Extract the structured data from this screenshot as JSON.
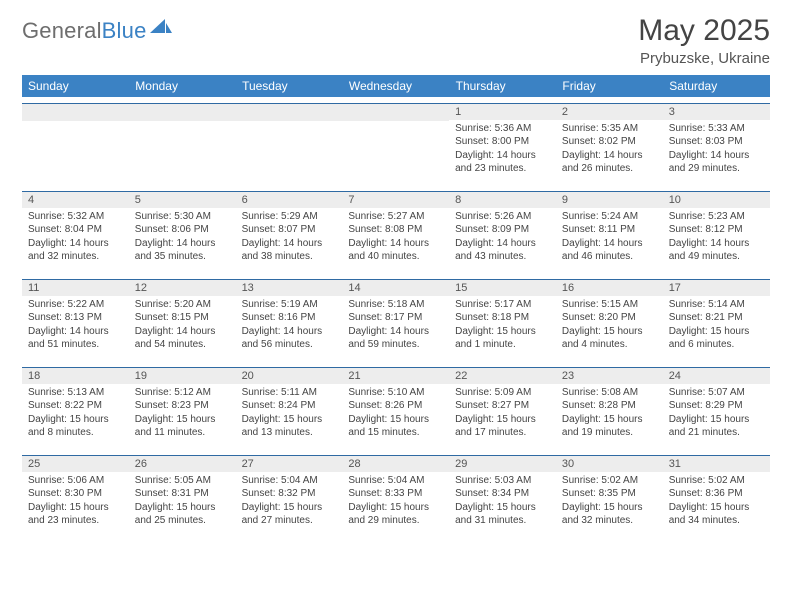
{
  "brand": {
    "part1": "General",
    "part2": "Blue"
  },
  "title": "May 2025",
  "location": "Prybuzske, Ukraine",
  "columns": [
    "Sunday",
    "Monday",
    "Tuesday",
    "Wednesday",
    "Thursday",
    "Friday",
    "Saturday"
  ],
  "colors": {
    "header_bg": "#3b82c4",
    "row_divider": "#2f6aa3",
    "daynum_bg": "#ededed",
    "text": "#444444"
  },
  "weeks": [
    [
      null,
      null,
      null,
      null,
      {
        "n": "1",
        "sr": "5:36 AM",
        "ss": "8:00 PM",
        "dl": "14 hours and 23 minutes."
      },
      {
        "n": "2",
        "sr": "5:35 AM",
        "ss": "8:02 PM",
        "dl": "14 hours and 26 minutes."
      },
      {
        "n": "3",
        "sr": "5:33 AM",
        "ss": "8:03 PM",
        "dl": "14 hours and 29 minutes."
      }
    ],
    [
      {
        "n": "4",
        "sr": "5:32 AM",
        "ss": "8:04 PM",
        "dl": "14 hours and 32 minutes."
      },
      {
        "n": "5",
        "sr": "5:30 AM",
        "ss": "8:06 PM",
        "dl": "14 hours and 35 minutes."
      },
      {
        "n": "6",
        "sr": "5:29 AM",
        "ss": "8:07 PM",
        "dl": "14 hours and 38 minutes."
      },
      {
        "n": "7",
        "sr": "5:27 AM",
        "ss": "8:08 PM",
        "dl": "14 hours and 40 minutes."
      },
      {
        "n": "8",
        "sr": "5:26 AM",
        "ss": "8:09 PM",
        "dl": "14 hours and 43 minutes."
      },
      {
        "n": "9",
        "sr": "5:24 AM",
        "ss": "8:11 PM",
        "dl": "14 hours and 46 minutes."
      },
      {
        "n": "10",
        "sr": "5:23 AM",
        "ss": "8:12 PM",
        "dl": "14 hours and 49 minutes."
      }
    ],
    [
      {
        "n": "11",
        "sr": "5:22 AM",
        "ss": "8:13 PM",
        "dl": "14 hours and 51 minutes."
      },
      {
        "n": "12",
        "sr": "5:20 AM",
        "ss": "8:15 PM",
        "dl": "14 hours and 54 minutes."
      },
      {
        "n": "13",
        "sr": "5:19 AM",
        "ss": "8:16 PM",
        "dl": "14 hours and 56 minutes."
      },
      {
        "n": "14",
        "sr": "5:18 AM",
        "ss": "8:17 PM",
        "dl": "14 hours and 59 minutes."
      },
      {
        "n": "15",
        "sr": "5:17 AM",
        "ss": "8:18 PM",
        "dl": "15 hours and 1 minute."
      },
      {
        "n": "16",
        "sr": "5:15 AM",
        "ss": "8:20 PM",
        "dl": "15 hours and 4 minutes."
      },
      {
        "n": "17",
        "sr": "5:14 AM",
        "ss": "8:21 PM",
        "dl": "15 hours and 6 minutes."
      }
    ],
    [
      {
        "n": "18",
        "sr": "5:13 AM",
        "ss": "8:22 PM",
        "dl": "15 hours and 8 minutes."
      },
      {
        "n": "19",
        "sr": "5:12 AM",
        "ss": "8:23 PM",
        "dl": "15 hours and 11 minutes."
      },
      {
        "n": "20",
        "sr": "5:11 AM",
        "ss": "8:24 PM",
        "dl": "15 hours and 13 minutes."
      },
      {
        "n": "21",
        "sr": "5:10 AM",
        "ss": "8:26 PM",
        "dl": "15 hours and 15 minutes."
      },
      {
        "n": "22",
        "sr": "5:09 AM",
        "ss": "8:27 PM",
        "dl": "15 hours and 17 minutes."
      },
      {
        "n": "23",
        "sr": "5:08 AM",
        "ss": "8:28 PM",
        "dl": "15 hours and 19 minutes."
      },
      {
        "n": "24",
        "sr": "5:07 AM",
        "ss": "8:29 PM",
        "dl": "15 hours and 21 minutes."
      }
    ],
    [
      {
        "n": "25",
        "sr": "5:06 AM",
        "ss": "8:30 PM",
        "dl": "15 hours and 23 minutes."
      },
      {
        "n": "26",
        "sr": "5:05 AM",
        "ss": "8:31 PM",
        "dl": "15 hours and 25 minutes."
      },
      {
        "n": "27",
        "sr": "5:04 AM",
        "ss": "8:32 PM",
        "dl": "15 hours and 27 minutes."
      },
      {
        "n": "28",
        "sr": "5:04 AM",
        "ss": "8:33 PM",
        "dl": "15 hours and 29 minutes."
      },
      {
        "n": "29",
        "sr": "5:03 AM",
        "ss": "8:34 PM",
        "dl": "15 hours and 31 minutes."
      },
      {
        "n": "30",
        "sr": "5:02 AM",
        "ss": "8:35 PM",
        "dl": "15 hours and 32 minutes."
      },
      {
        "n": "31",
        "sr": "5:02 AM",
        "ss": "8:36 PM",
        "dl": "15 hours and 34 minutes."
      }
    ]
  ],
  "labels": {
    "sunrise": "Sunrise:",
    "sunset": "Sunset:",
    "daylight": "Daylight:"
  }
}
